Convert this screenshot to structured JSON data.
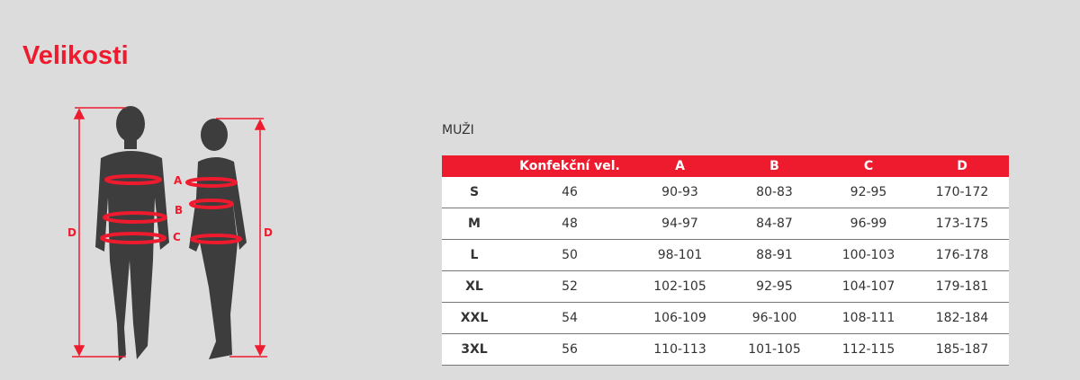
{
  "page_title": "Velikosti",
  "section_label": "MUŽI",
  "figure_labels": {
    "a": "A",
    "b": "B",
    "c": "C",
    "d": "D"
  },
  "colors": {
    "accent": "#ee1b2e",
    "background": "#dcdcdc",
    "silhouette": "#3d3d3d"
  },
  "table": {
    "headers": [
      "",
      "Konfekční vel.",
      "A",
      "B",
      "C",
      "D"
    ],
    "rows": [
      [
        "S",
        "46",
        "90-93",
        "80-83",
        "92-95",
        "170-172"
      ],
      [
        "M",
        "48",
        "94-97",
        "84-87",
        "96-99",
        "173-175"
      ],
      [
        "L",
        "50",
        "98-101",
        "88-91",
        "100-103",
        "176-178"
      ],
      [
        "XL",
        "52",
        "102-105",
        "92-95",
        "104-107",
        "179-181"
      ],
      [
        "XXL",
        "54",
        "106-109",
        "96-100",
        "108-111",
        "182-184"
      ],
      [
        "3XL",
        "56",
        "110-113",
        "101-105",
        "112-115",
        "185-187"
      ]
    ]
  }
}
